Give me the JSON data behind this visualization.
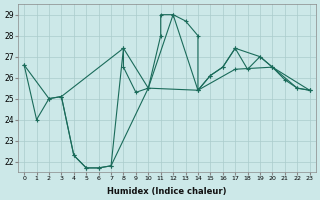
{
  "xlabel": "Humidex (Indice chaleur)",
  "background_color": "#cce8e8",
  "grid_color": "#aacccc",
  "line_color": "#1a6b5a",
  "xlim": [
    -0.5,
    23.5
  ],
  "ylim": [
    21.5,
    29.5
  ],
  "xtick_labels": [
    "0",
    "1",
    "2",
    "3",
    "4",
    "5",
    "6",
    "7",
    "8",
    "9",
    "10",
    "11",
    "12",
    "13",
    "14",
    "15",
    "16",
    "17",
    "18",
    "19",
    "20",
    "21",
    "22",
    "23"
  ],
  "ytick_labels": [
    "22",
    "23",
    "24",
    "25",
    "26",
    "27",
    "28",
    "29"
  ],
  "series1": [
    [
      0,
      26.6
    ],
    [
      1,
      24.0
    ],
    [
      2,
      25.0
    ],
    [
      3,
      25.1
    ],
    [
      4,
      22.3
    ],
    [
      5,
      21.7
    ],
    [
      6,
      21.7
    ],
    [
      7,
      21.8
    ],
    [
      8,
      27.4
    ],
    [
      8,
      26.5
    ],
    [
      9,
      25.3
    ],
    [
      10,
      25.5
    ],
    [
      11,
      28.0
    ],
    [
      11,
      29.0
    ],
    [
      12,
      29.0
    ],
    [
      13,
      28.7
    ],
    [
      14,
      28.0
    ],
    [
      14,
      25.4
    ],
    [
      15,
      26.1
    ],
    [
      16,
      26.5
    ],
    [
      17,
      27.4
    ],
    [
      18,
      26.4
    ],
    [
      19,
      27.0
    ],
    [
      20,
      26.5
    ],
    [
      21,
      25.9
    ],
    [
      22,
      25.5
    ],
    [
      23,
      25.4
    ]
  ],
  "series2": [
    [
      0,
      26.6
    ],
    [
      2,
      25.0
    ],
    [
      3,
      25.1
    ],
    [
      8,
      27.4
    ],
    [
      10,
      25.5
    ],
    [
      12,
      29.0
    ],
    [
      14,
      25.4
    ],
    [
      15,
      26.1
    ],
    [
      16,
      26.5
    ],
    [
      17,
      27.4
    ],
    [
      19,
      27.0
    ],
    [
      20,
      26.5
    ],
    [
      22,
      25.5
    ],
    [
      23,
      25.4
    ]
  ],
  "series3": [
    [
      3,
      25.1
    ],
    [
      4,
      22.3
    ],
    [
      5,
      21.7
    ],
    [
      6,
      21.7
    ],
    [
      7,
      21.8
    ],
    [
      10,
      25.5
    ],
    [
      14,
      25.4
    ],
    [
      17,
      26.4
    ],
    [
      20,
      26.5
    ],
    [
      23,
      25.4
    ]
  ]
}
